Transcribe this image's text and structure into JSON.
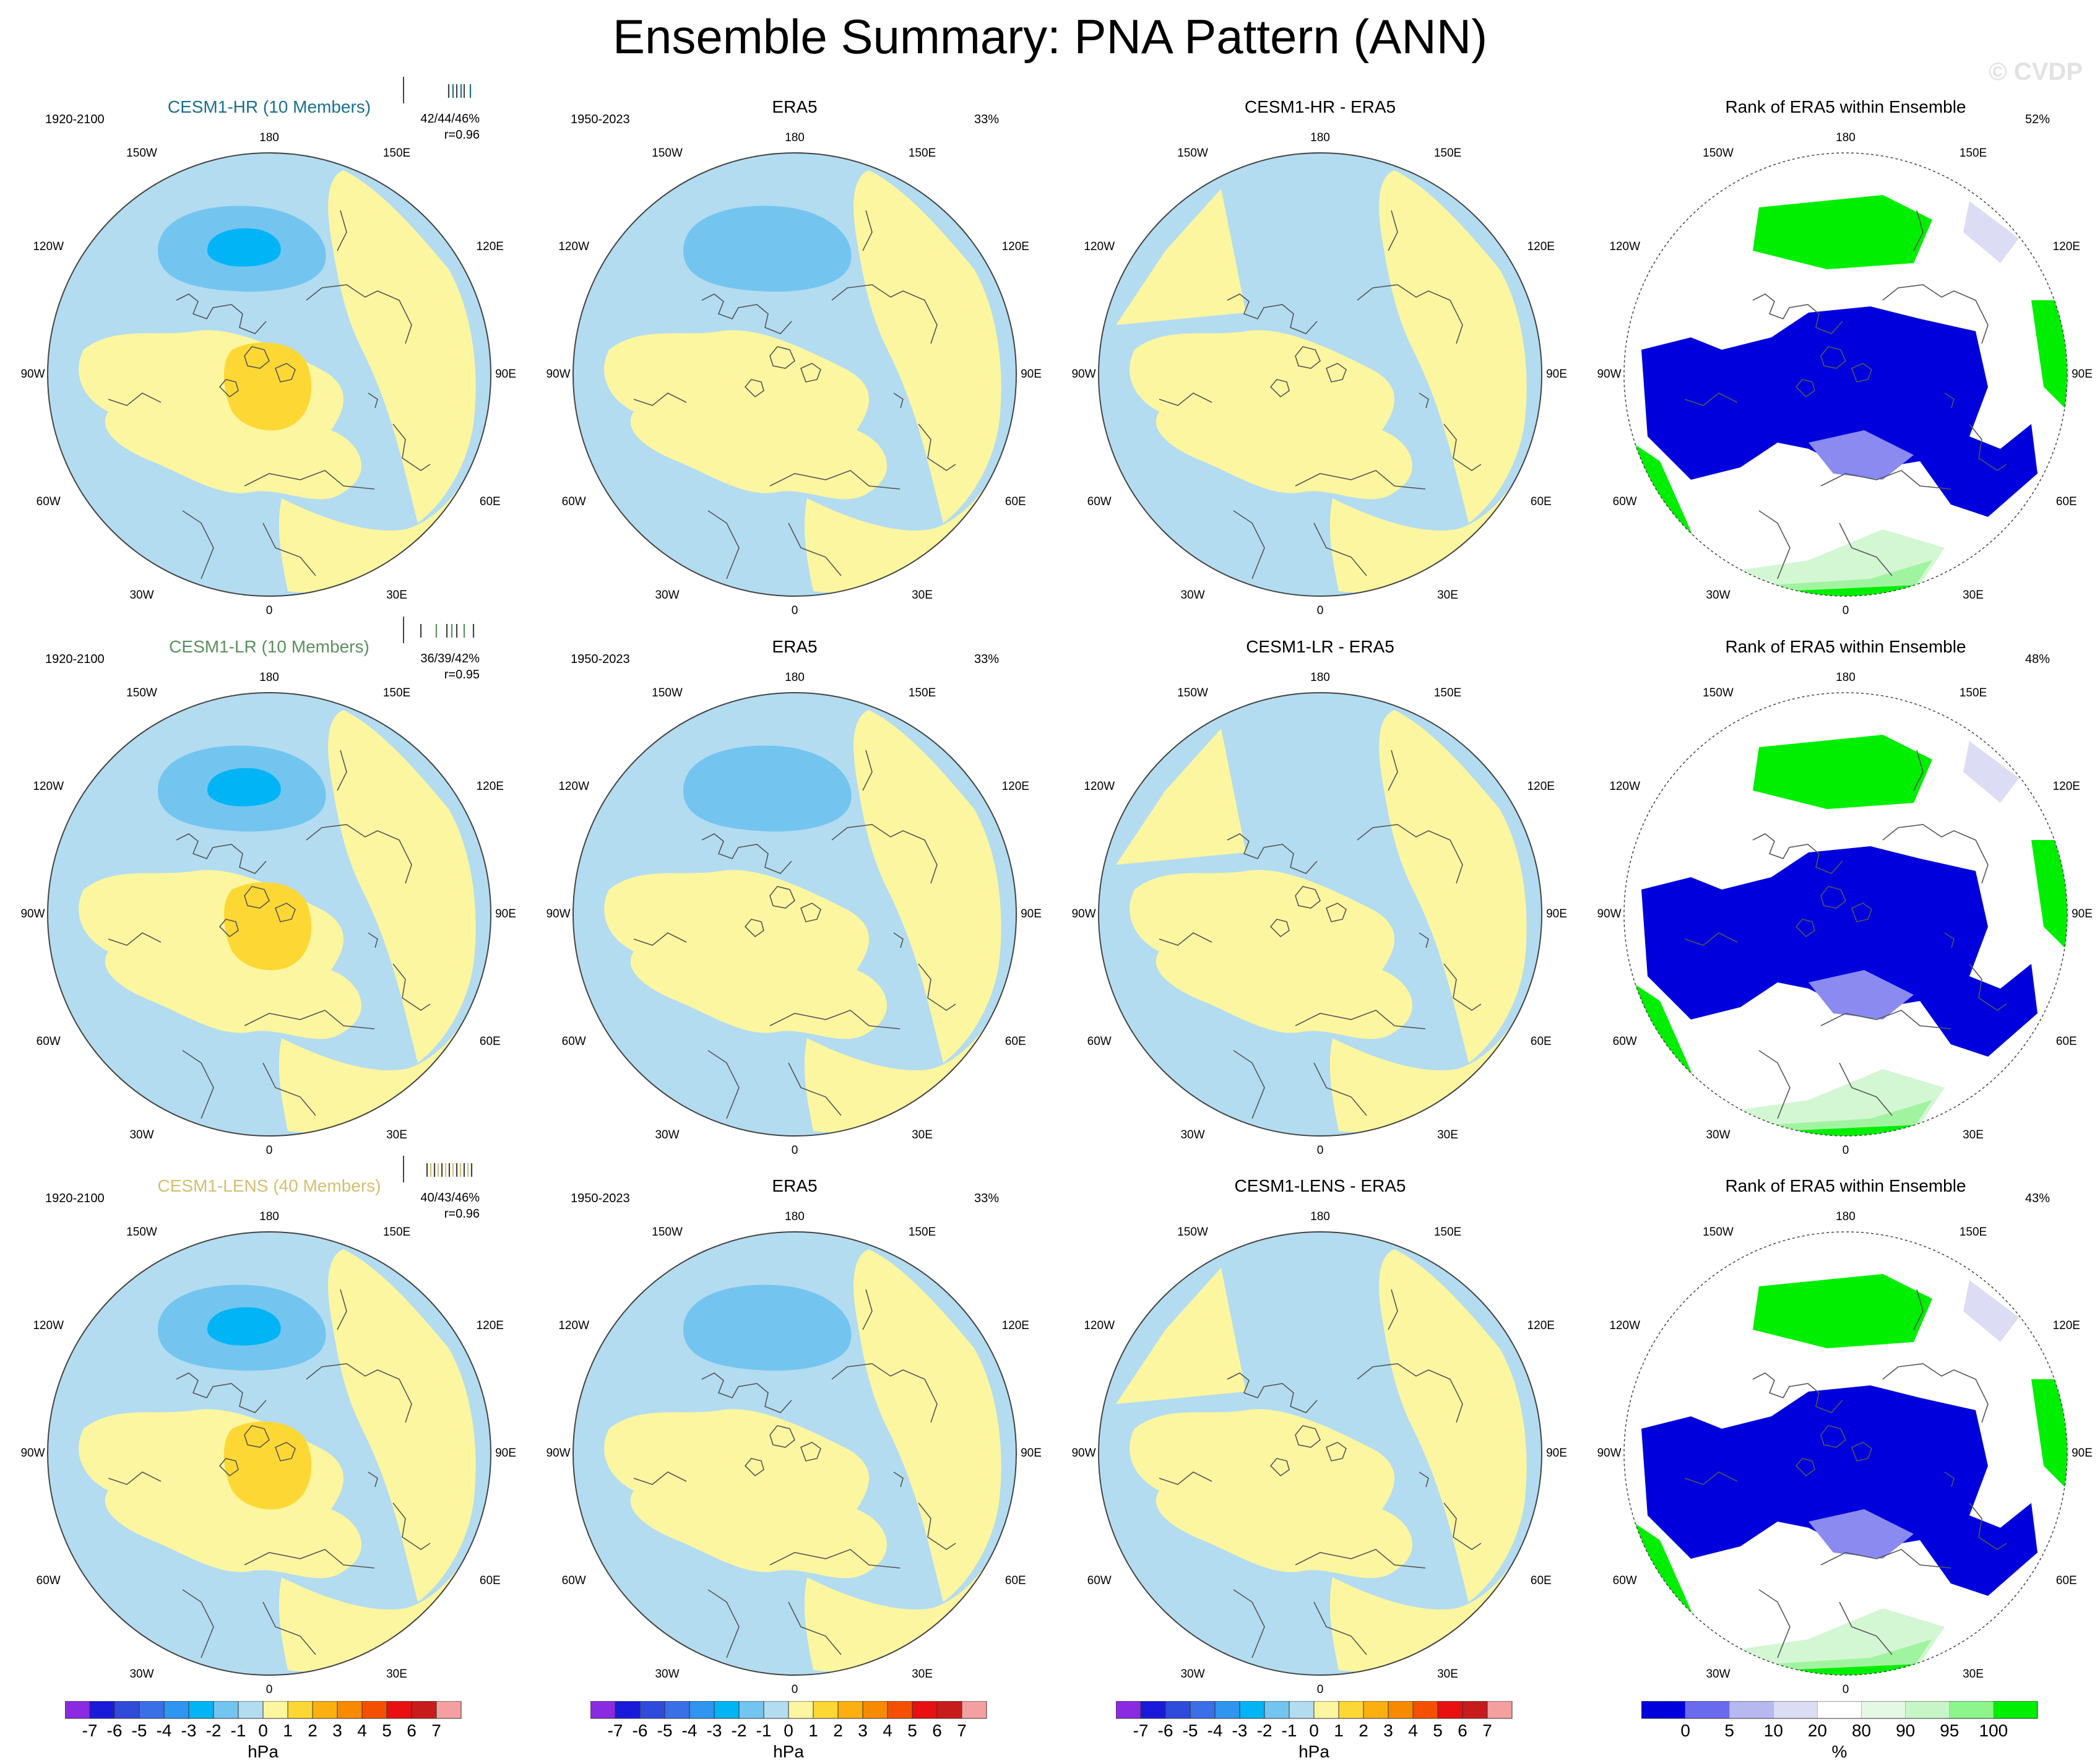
{
  "title": "Ensemble Summary: PNA Pattern (ANN)",
  "watermark": "© CVDP",
  "colors": {
    "ocean_neg": "#b3dcf0",
    "land_pos": "#fdf6a0",
    "neg2": "#74c4f0",
    "neg3": "#00b4f5",
    "pos2": "#fdd835",
    "rank_blue": "#0000dd",
    "rank_green": "#00ee00",
    "rank_lightblue": "#dcdcf5",
    "rank_lightgreen": "#c8f5c8"
  },
  "lon_labels": [
    "180",
    "150E",
    "120E",
    "90E",
    "60E",
    "30E",
    "0",
    "30W",
    "60W",
    "90W",
    "120W",
    "150W"
  ],
  "rows": [
    {
      "model_title": "CESM1-HR (10 Members)",
      "model_color": "#1a7090",
      "model_years": "1920-2100",
      "model_stats": "42/44/46%",
      "model_r": "r=0.96",
      "obs_title": "ERA5",
      "obs_years": "1950-2023",
      "obs_pct": "33%",
      "diff_title": "CESM1-HR - ERA5",
      "rank_title": "Rank of ERA5 within Ensemble",
      "rank_pct": "52%"
    },
    {
      "model_title": "CESM1-LR (10 Members)",
      "model_color": "#5a9060",
      "model_years": "1920-2100",
      "model_stats": "36/39/42%",
      "model_r": "r=0.95",
      "obs_title": "ERA5",
      "obs_years": "1950-2023",
      "obs_pct": "33%",
      "diff_title": "CESM1-LR - ERA5",
      "rank_title": "Rank of ERA5 within Ensemble",
      "rank_pct": "48%"
    },
    {
      "model_title": "CESM1-LENS (40 Members)",
      "model_color": "#d4c070",
      "model_years": "1920-2100",
      "model_stats": "40/43/46%",
      "model_r": "r=0.96",
      "obs_title": "ERA5",
      "obs_years": "1950-2023",
      "obs_pct": "33%",
      "diff_title": "CESM1-LENS - ERA5",
      "rank_title": "Rank of ERA5 within Ensemble",
      "rank_pct": "43%"
    }
  ],
  "chart_data": [
    {
      "type": "heatmap",
      "title": "Ensemble Summary: PNA Pattern (ANN)",
      "projection": "north polar stereographic",
      "units": "hPa",
      "colorbar": {
        "label": "hPa",
        "tick_labels": [
          "-7",
          "-6",
          "-5",
          "-4",
          "-3",
          "-2",
          "-1",
          "0",
          "1",
          "2",
          "3",
          "4",
          "5",
          "6",
          "7"
        ],
        "colors": [
          "#8a2be2",
          "#1a1adb",
          "#2e4bdb",
          "#3a6fe8",
          "#2e95f0",
          "#00b4f5",
          "#74c4f0",
          "#b3dcf0",
          "#fdf6a0",
          "#fdd835",
          "#fbb010",
          "#f88a00",
          "#f55000",
          "#e81010",
          "#c81c1c",
          "#f5a0a0"
        ]
      },
      "panels_per_row": [
        "Model ensemble mean",
        "ERA5",
        "Model - ERA5"
      ]
    },
    {
      "type": "heatmap",
      "title": "Rank of ERA5 within Ensemble",
      "units": "%",
      "colorbar": {
        "label": "%",
        "tick_labels": [
          "0",
          "5",
          "10",
          "20",
          "80",
          "90",
          "95",
          "100"
        ],
        "colors": [
          "#0000dd",
          "#6a6aee",
          "#b8b8f0",
          "#dcdcf5",
          "#ffffff",
          "#e4f8e4",
          "#c8f5c8",
          "#8cf58c",
          "#00ee00"
        ]
      },
      "rank_pct_by_row": [
        52,
        48,
        43
      ]
    }
  ]
}
